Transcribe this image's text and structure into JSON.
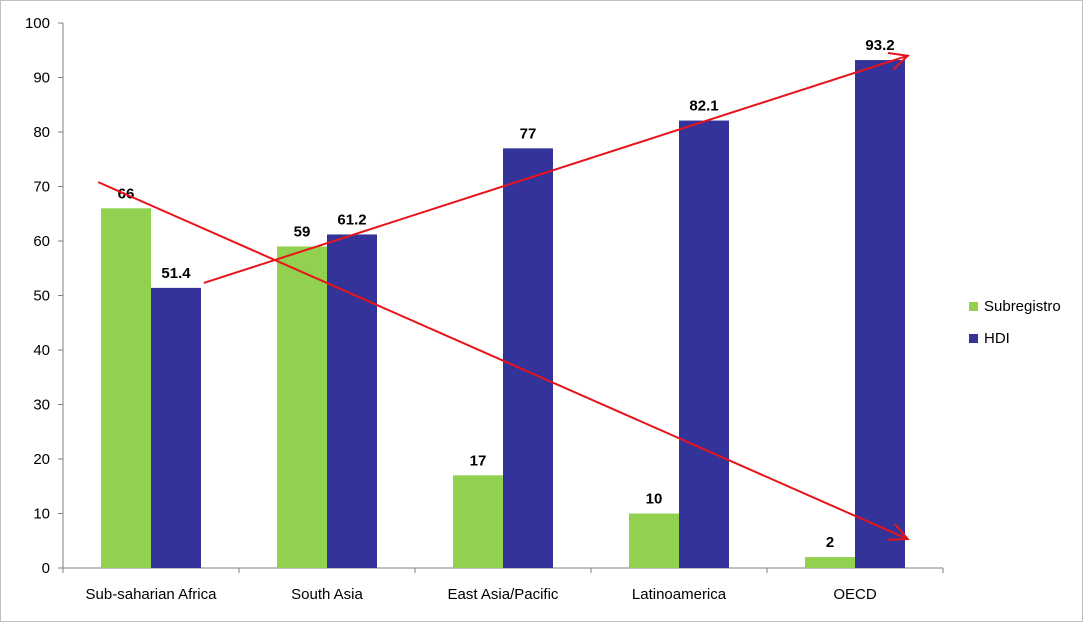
{
  "chart_data": {
    "type": "bar",
    "categories": [
      "Sub-saharian Africa",
      "South Asia",
      "East Asia/Pacific",
      "Latinoamerica",
      "OECD"
    ],
    "series": [
      {
        "name": "Subregistro",
        "values": [
          66,
          59,
          17,
          10,
          2
        ],
        "labels": [
          "66",
          "59",
          "17",
          "10",
          "2"
        ],
        "color": "#92d050"
      },
      {
        "name": "HDI",
        "values": [
          51.4,
          61.2,
          77,
          82.1,
          93.2
        ],
        "labels": [
          "51.4",
          "61.2",
          "77",
          "82.1",
          "93.2"
        ],
        "color": "#333399"
      }
    ],
    "ylim": [
      0,
      100
    ],
    "yticks": [
      "0",
      "10",
      "20",
      "30",
      "40",
      "50",
      "60",
      "70",
      "80",
      "90",
      "100"
    ],
    "grid": false,
    "legend_position": "right",
    "annotations": [
      {
        "type": "trend-arrow",
        "color": "#e8141b",
        "direction": "rising",
        "from": [
          0.3,
          52.3
        ],
        "to": [
          4.3,
          94
        ]
      },
      {
        "type": "trend-arrow",
        "color": "#e8141b",
        "direction": "falling",
        "from": [
          -0.3,
          70.8
        ],
        "to": [
          4.3,
          5.3
        ]
      }
    ]
  }
}
